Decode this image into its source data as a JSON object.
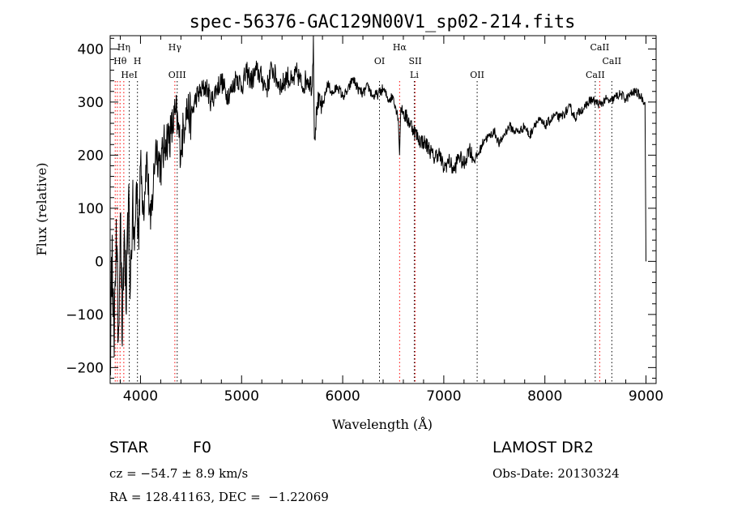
{
  "title": "spec-56376-GAC129N00V1_sp02-214.fits",
  "chart_data": {
    "type": "line",
    "title": "spec-56376-GAC129N00V1_sp02-214.fits",
    "xlabel": "Wavelength (Å)",
    "ylabel": "Flux (relative)",
    "xlim": [
      3700,
      9100
    ],
    "ylim": [
      -230,
      425
    ],
    "x_ticks": [
      4000,
      5000,
      6000,
      7000,
      8000,
      9000
    ],
    "y_ticks": [
      -200,
      -100,
      0,
      100,
      200,
      300,
      400
    ],
    "grid": false,
    "series": [
      {
        "x": [
          3700,
          3720,
          3740,
          3760,
          3780,
          3800,
          3820,
          3840,
          3860,
          3880,
          3900,
          3920,
          3940,
          3960,
          3980,
          4000,
          4030,
          4060,
          4100,
          4150,
          4200,
          4250,
          4300,
          4350,
          4400,
          4450,
          4500,
          4550,
          4600,
          4650,
          4700,
          4750,
          4800,
          4850,
          4900,
          4950,
          5000,
          5050,
          5100,
          5150,
          5200,
          5250,
          5300,
          5350,
          5400,
          5450,
          5500,
          5550,
          5600,
          5650,
          5700,
          5710,
          5720,
          5750,
          5800,
          5850,
          5900,
          5950,
          6000,
          6050,
          6100,
          6150,
          6200,
          6250,
          6300,
          6350,
          6400,
          6450,
          6500,
          6550,
          6563,
          6575,
          6600,
          6650,
          6700,
          6750,
          6800,
          6850,
          6900,
          6950,
          7000,
          7050,
          7100,
          7150,
          7200,
          7250,
          7300,
          7350,
          7400,
          7450,
          7500,
          7550,
          7600,
          7650,
          7700,
          7750,
          7800,
          7850,
          7900,
          7950,
          8000,
          8050,
          8100,
          8150,
          8200,
          8250,
          8300,
          8350,
          8400,
          8450,
          8500,
          8550,
          8600,
          8650,
          8700,
          8750,
          8800,
          8850,
          8900,
          8950,
          8990,
          9000
        ],
        "y": [
          -210,
          50,
          -180,
          80,
          -150,
          90,
          -160,
          60,
          -100,
          120,
          -50,
          100,
          20,
          150,
          60,
          180,
          100,
          200,
          60,
          220,
          180,
          230,
          240,
          280,
          210,
          290,
          270,
          310,
          320,
          330,
          300,
          325,
          340,
          315,
          320,
          350,
          330,
          355,
          340,
          360,
          345,
          325,
          365,
          340,
          330,
          350,
          335,
          355,
          330,
          345,
          330,
          425,
          230,
          300,
          290,
          335,
          315,
          330,
          310,
          320,
          345,
          325,
          315,
          330,
          310,
          315,
          325,
          305,
          310,
          270,
          200,
          290,
          280,
          265,
          250,
          230,
          225,
          215,
          195,
          205,
          175,
          190,
          170,
          200,
          180,
          215,
          190,
          205,
          230,
          235,
          245,
          220,
          240,
          255,
          245,
          245,
          255,
          235,
          260,
          265,
          255,
          265,
          275,
          270,
          280,
          290,
          270,
          285,
          290,
          305,
          300,
          295,
          305,
          300,
          310,
          315,
          305,
          315,
          320,
          310,
          300,
          0
        ]
      }
    ],
    "annotations": [
      {
        "label": "Hη",
        "x": 3835,
        "row": 1
      },
      {
        "label": "Hθ",
        "x": 3798,
        "row": 2
      },
      {
        "label": "H",
        "x": 3970,
        "row": 2
      },
      {
        "label": "HeI",
        "x": 3889,
        "row": 3
      },
      {
        "label": "Hγ",
        "x": 4340,
        "row": 1
      },
      {
        "label": "OIII",
        "x": 4363,
        "row": 3
      },
      {
        "label": "Hα",
        "x": 6563,
        "row": 1
      },
      {
        "label": "OI",
        "x": 6364,
        "row": 2
      },
      {
        "label": "SII",
        "x": 6717,
        "row": 2
      },
      {
        "label": "Li",
        "x": 6708,
        "row": 3
      },
      {
        "label": "OII",
        "x": 7330,
        "row": 3
      },
      {
        "label": "CaII",
        "x": 8542,
        "row": 1
      },
      {
        "label": "CaII",
        "x": 8662,
        "row": 2
      },
      {
        "label": "CaII",
        "x": 8498,
        "row": 3
      }
    ],
    "marker_lines": [
      {
        "x": 3750,
        "color": "#ff0000"
      },
      {
        "x": 3771,
        "color": "#ff0000"
      },
      {
        "x": 3798,
        "color": "#ff0000"
      },
      {
        "x": 3835,
        "color": "#ff0000"
      },
      {
        "x": 3889,
        "color": "#000000"
      },
      {
        "x": 3970,
        "color": "#000000"
      },
      {
        "x": 4340,
        "color": "#ff0000"
      },
      {
        "x": 4363,
        "color": "#000000"
      },
      {
        "x": 6364,
        "color": "#000000"
      },
      {
        "x": 6563,
        "color": "#ff0000"
      },
      {
        "x": 6708,
        "color": "#000000"
      },
      {
        "x": 6717,
        "color": "#ff0000"
      },
      {
        "x": 7330,
        "color": "#000000"
      },
      {
        "x": 8498,
        "color": "#000000"
      },
      {
        "x": 8542,
        "color": "#ff0000"
      },
      {
        "x": 8662,
        "color": "#000000"
      }
    ]
  },
  "info": {
    "class": "STAR",
    "subclass": "F0",
    "survey": "LAMOST DR2",
    "cz": "cz = −54.7 ± 8.9 km/s",
    "obs_date": "Obs-Date: 20130324",
    "radec": "RA = 128.41163, DEC =  −1.22069"
  }
}
